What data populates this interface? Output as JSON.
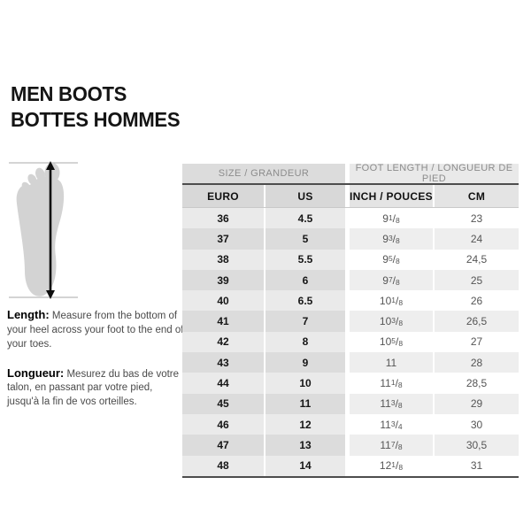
{
  "header": {
    "title_line1": "MEN BOOTS",
    "title_line2": "BOTTES HOMMES"
  },
  "instructions": {
    "length_label": "Length:",
    "length_text": "Measure from the bottom of your heel across your foot to the end of your toes.",
    "longueur_label": "Longueur:",
    "longueur_text": "Mesurez du bas de votre talon, en passant par votre pied, jusqu'à la fin de vos orteilles."
  },
  "foot_figure": {
    "icon": "foot-sole-with-length-arrow",
    "silhouette_color": "#d3d3d3",
    "arrow_color": "#0d0d0d",
    "guide_line_color": "#aaaaaa"
  },
  "size_chart": {
    "group_headers": [
      "SIZE / GRANDEUR",
      "FOOT LENGTH / LONGUEUR DE PIED"
    ],
    "column_headers": [
      "EURO",
      "US",
      "INCH / POUCES",
      "CM"
    ],
    "rows": [
      {
        "euro": "36",
        "us": "4.5",
        "inch": "9 1/8",
        "cm": "23"
      },
      {
        "euro": "37",
        "us": "5",
        "inch": "9 3/8",
        "cm": "24"
      },
      {
        "euro": "38",
        "us": "5.5",
        "inch": "9 5/8",
        "cm": "24,5"
      },
      {
        "euro": "39",
        "us": "6",
        "inch": "9 7/8",
        "cm": "25"
      },
      {
        "euro": "40",
        "us": "6.5",
        "inch": "10 1/8",
        "cm": "26"
      },
      {
        "euro": "41",
        "us": "7",
        "inch": "10 3/8",
        "cm": "26,5"
      },
      {
        "euro": "42",
        "us": "8",
        "inch": "10 5/8",
        "cm": "27"
      },
      {
        "euro": "43",
        "us": "9",
        "inch": "11",
        "cm": "28"
      },
      {
        "euro": "44",
        "us": "10",
        "inch": "11 1/8",
        "cm": "28,5"
      },
      {
        "euro": "45",
        "us": "11",
        "inch": "11 3/8",
        "cm": "29"
      },
      {
        "euro": "46",
        "us": "12",
        "inch": "11 3/4",
        "cm": "30"
      },
      {
        "euro": "47",
        "us": "13",
        "inch": "11 7/8",
        "cm": "30,5"
      },
      {
        "euro": "48",
        "us": "14",
        "inch": "12 1/8",
        "cm": "31"
      }
    ]
  },
  "colors": {
    "group_header_left_bg": "#dcdcdc",
    "group_header_right_bg": "#e9e9e9",
    "header_text": "#8c8c8c",
    "column_header_left_bg": "#d8d8d8",
    "column_header_right_bg": "#e4e4e4",
    "row_left_light": "#eaeaea",
    "row_left_dark": "#dcdcdc",
    "row_right_light": "#ffffff",
    "row_right_dark": "#eeeeee",
    "border_dark": "#4d4d4d",
    "title_text": "#141414"
  }
}
